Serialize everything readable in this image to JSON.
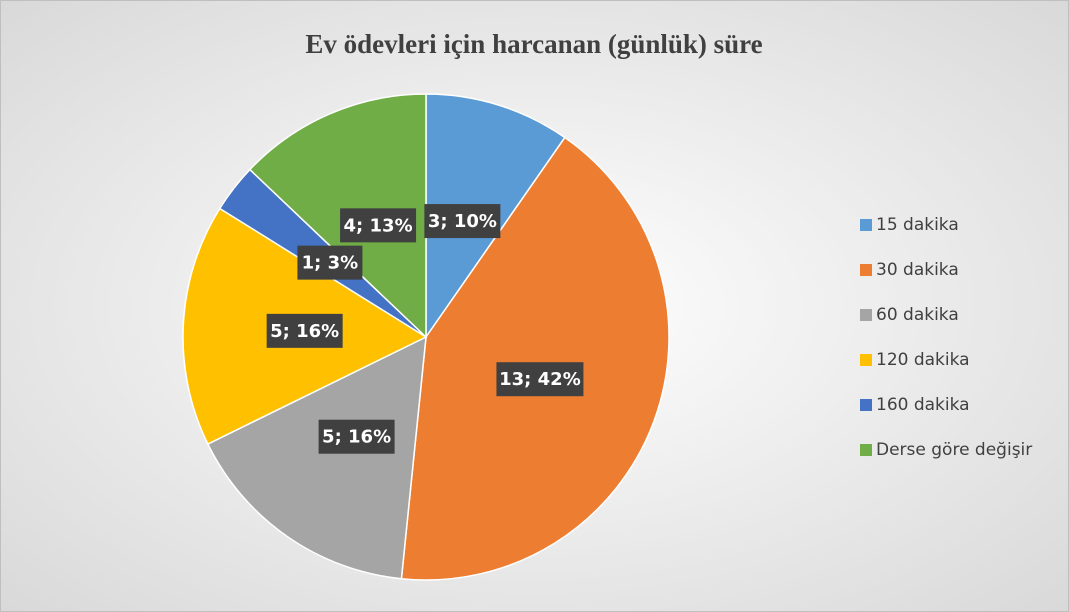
{
  "chart_data": {
    "type": "pie",
    "title": "Ev ödevleri için harcanan (günlük) süre",
    "categories": [
      "15 dakika",
      "30 dakika",
      "60 dakika",
      "120 dakika",
      "160 dakika",
      "Derse göre değişir"
    ],
    "values": [
      3,
      13,
      5,
      5,
      1,
      4
    ],
    "value_labels": [
      "3; 10%",
      "13; 42%",
      "5; 16%",
      "5; 16%",
      "1; 3%",
      "4; 13%"
    ],
    "colors": [
      "#5b9bd5",
      "#ed7d31",
      "#a5a5a5",
      "#ffc000",
      "#4472c4",
      "#70ad47"
    ],
    "legend": "right"
  }
}
